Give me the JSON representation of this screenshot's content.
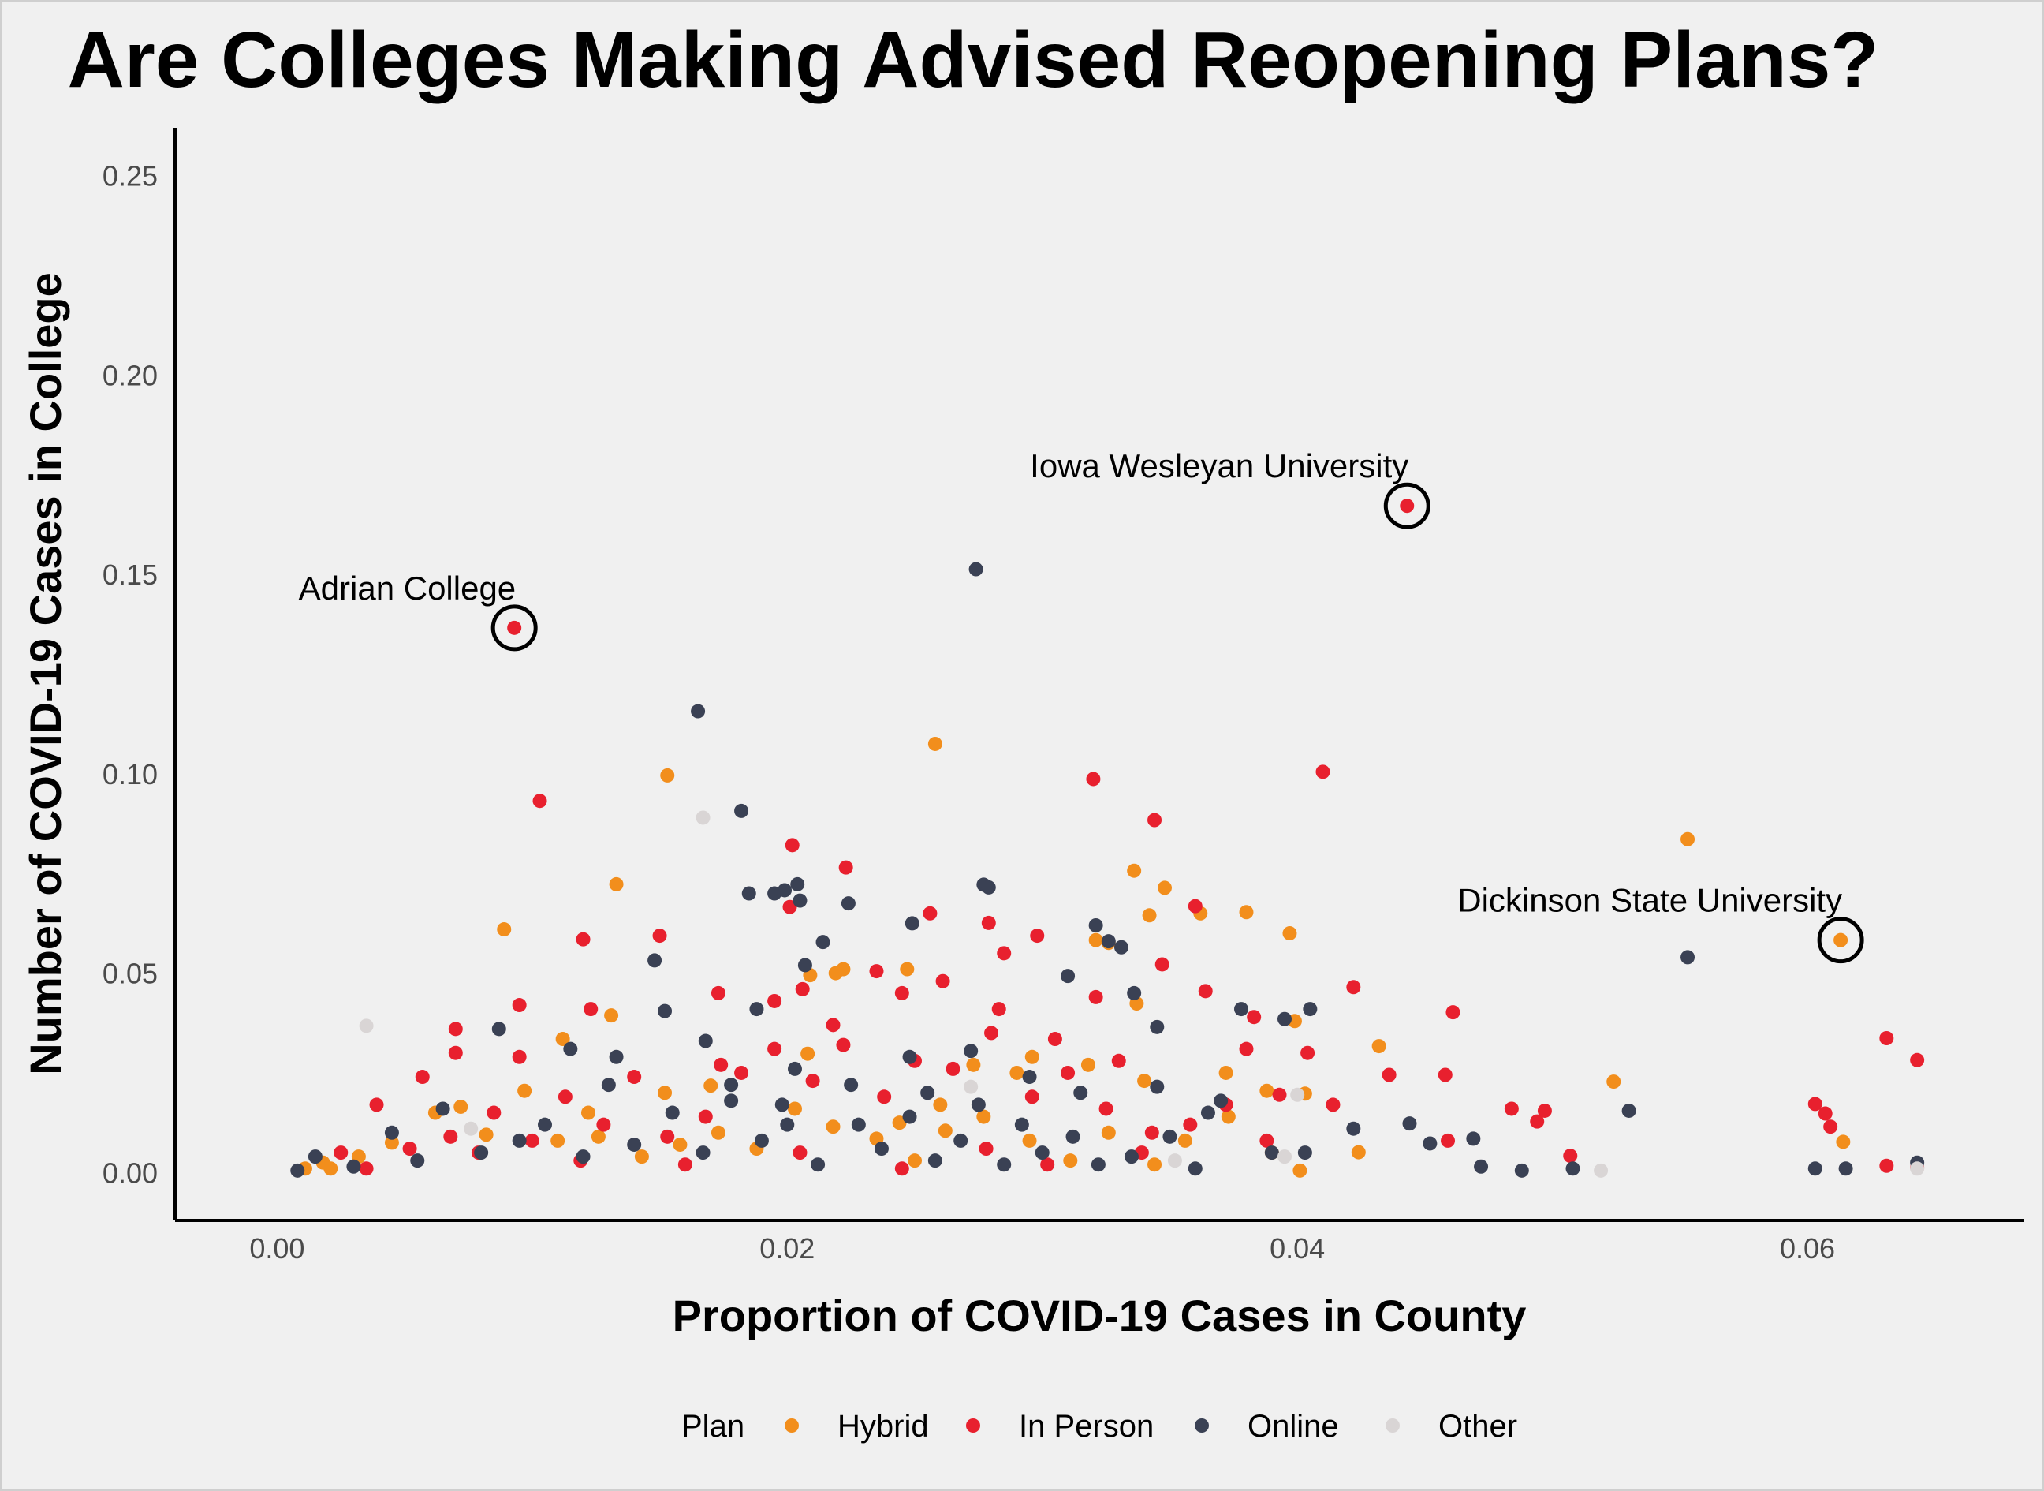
{
  "chart_data": {
    "type": "scatter",
    "title": "Are Colleges Making Advised Reopening Plans?",
    "xlabel": "Proportion of COVID-19 Cases in County",
    "ylabel": "Number of COVID-19 Cases in College",
    "xlim": [
      -0.004,
      0.0685
    ],
    "ylim": [
      -0.012,
      0.262
    ],
    "x_ticks": [
      0.0,
      0.02,
      0.04,
      0.06
    ],
    "x_tick_labels": [
      "0.00",
      "0.02",
      "0.04",
      "0.06"
    ],
    "y_ticks": [
      0.0,
      0.05,
      0.1,
      0.15,
      0.2,
      0.25
    ],
    "y_tick_labels": [
      "0.00",
      "0.05",
      "0.10",
      "0.15",
      "0.20",
      "0.25"
    ],
    "grid": false,
    "legend": {
      "title": "Plan",
      "placement": "bottom",
      "entries": [
        "Hybrid",
        "In Person",
        "Online",
        "Other"
      ]
    },
    "colors": {
      "Hybrid": "#f28e1c",
      "In Person": "#e8202e",
      "Online": "#3a4154",
      "Other": "#d9d5d5"
    },
    "series": [
      {
        "name": "Hybrid",
        "points": [
          [
            0.0153,
            0.0996
          ],
          [
            0.0258,
            0.1075
          ],
          [
            0.0133,
            0.0723
          ],
          [
            0.0089,
            0.061
          ],
          [
            0.0336,
            0.0757
          ],
          [
            0.0348,
            0.0714
          ],
          [
            0.0362,
            0.065
          ],
          [
            0.0342,
            0.0645
          ],
          [
            0.038,
            0.0653
          ],
          [
            0.0397,
            0.06
          ],
          [
            0.0321,
            0.0583
          ],
          [
            0.0326,
            0.0576
          ],
          [
            0.0553,
            0.0836
          ],
          [
            0.0613,
            0.0583
          ],
          [
            0.0131,
            0.0394
          ],
          [
            0.0112,
            0.0335
          ],
          [
            0.0222,
            0.051
          ],
          [
            0.0247,
            0.051
          ],
          [
            0.0209,
            0.0495
          ],
          [
            0.0219,
            0.05
          ],
          [
            0.0337,
            0.0424
          ],
          [
            0.0399,
            0.038
          ],
          [
            0.0432,
            0.0317
          ],
          [
            0.0524,
            0.0228
          ],
          [
            0.0614,
            0.0077
          ],
          [
            0.0424,
            0.0051
          ],
          [
            0.0401,
            0.0005
          ],
          [
            0.0403,
            0.0198
          ],
          [
            0.0388,
            0.0205
          ],
          [
            0.0372,
            0.025
          ],
          [
            0.0208,
            0.0298
          ],
          [
            0.017,
            0.0218
          ],
          [
            0.0152,
            0.02
          ],
          [
            0.026,
            0.017
          ],
          [
            0.0244,
            0.0125
          ],
          [
            0.0122,
            0.015
          ],
          [
            0.0097,
            0.0205
          ],
          [
            0.0062,
            0.015
          ],
          [
            0.0072,
            0.0165
          ],
          [
            0.0032,
            0.004
          ],
          [
            0.0021,
            0.001
          ],
          [
            0.0011,
            0.001
          ],
          [
            0.0018,
            0.0025
          ],
          [
            0.0045,
            0.0075
          ],
          [
            0.0082,
            0.0095
          ],
          [
            0.011,
            0.008
          ],
          [
            0.0126,
            0.009
          ],
          [
            0.0143,
            0.004
          ],
          [
            0.0158,
            0.007
          ],
          [
            0.0173,
            0.01
          ],
          [
            0.0188,
            0.006
          ],
          [
            0.0203,
            0.016
          ],
          [
            0.0218,
            0.0115
          ],
          [
            0.0235,
            0.0085
          ],
          [
            0.025,
            0.003
          ],
          [
            0.0262,
            0.0105
          ],
          [
            0.0277,
            0.014
          ],
          [
            0.0295,
            0.008
          ],
          [
            0.0311,
            0.003
          ],
          [
            0.0326,
            0.01
          ],
          [
            0.0344,
            0.002
          ],
          [
            0.0356,
            0.008
          ],
          [
            0.0373,
            0.014
          ],
          [
            0.039,
            0.005
          ],
          [
            0.0296,
            0.029
          ],
          [
            0.0318,
            0.027
          ],
          [
            0.034,
            0.023
          ],
          [
            0.029,
            0.025
          ],
          [
            0.0273,
            0.027
          ]
        ]
      },
      {
        "name": "In Person",
        "points": [
          [
            0.0093,
            0.1366
          ],
          [
            0.0443,
            0.1672
          ],
          [
            0.0103,
            0.0932
          ],
          [
            0.032,
            0.0987
          ],
          [
            0.041,
            0.1005
          ],
          [
            0.0202,
            0.0821
          ],
          [
            0.0223,
            0.0765
          ],
          [
            0.0344,
            0.0884
          ],
          [
            0.0256,
            0.065
          ],
          [
            0.0201,
            0.0666
          ],
          [
            0.036,
            0.0668
          ],
          [
            0.0279,
            0.0626
          ],
          [
            0.0298,
            0.0594
          ],
          [
            0.0285,
            0.055
          ],
          [
            0.012,
            0.0585
          ],
          [
            0.015,
            0.0594
          ],
          [
            0.0173,
            0.045
          ],
          [
            0.0206,
            0.046
          ],
          [
            0.0235,
            0.0505
          ],
          [
            0.0261,
            0.048
          ],
          [
            0.0283,
            0.041
          ],
          [
            0.0321,
            0.044
          ],
          [
            0.0347,
            0.0522
          ],
          [
            0.0364,
            0.0455
          ],
          [
            0.0383,
            0.039
          ],
          [
            0.0422,
            0.0465
          ],
          [
            0.0461,
            0.0402
          ],
          [
            0.0631,
            0.0337
          ],
          [
            0.0643,
            0.0282
          ],
          [
            0.0603,
            0.0172
          ],
          [
            0.0607,
            0.0148
          ],
          [
            0.0609,
            0.0115
          ],
          [
            0.0631,
            0.0017
          ],
          [
            0.0643,
            0.0012
          ],
          [
            0.0484,
            0.016
          ],
          [
            0.0497,
            0.0155
          ],
          [
            0.0494,
            0.0128
          ],
          [
            0.0507,
            0.0042
          ],
          [
            0.0459,
            0.008
          ],
          [
            0.0458,
            0.0245
          ],
          [
            0.0436,
            0.0245
          ],
          [
            0.0414,
            0.017
          ],
          [
            0.0393,
            0.0195
          ],
          [
            0.038,
            0.031
          ],
          [
            0.007,
            0.036
          ],
          [
            0.007,
            0.03
          ],
          [
            0.0095,
            0.029
          ],
          [
            0.0095,
            0.042
          ],
          [
            0.0123,
            0.041
          ],
          [
            0.0057,
            0.024
          ],
          [
            0.0039,
            0.017
          ],
          [
            0.0025,
            0.005
          ],
          [
            0.0035,
            0.001
          ],
          [
            0.0052,
            0.006
          ],
          [
            0.0068,
            0.009
          ],
          [
            0.0085,
            0.015
          ],
          [
            0.01,
            0.008
          ],
          [
            0.0113,
            0.019
          ],
          [
            0.0128,
            0.012
          ],
          [
            0.014,
            0.024
          ],
          [
            0.0153,
            0.009
          ],
          [
            0.0168,
            0.014
          ],
          [
            0.0182,
            0.025
          ],
          [
            0.0195,
            0.031
          ],
          [
            0.021,
            0.023
          ],
          [
            0.0222,
            0.032
          ],
          [
            0.0238,
            0.019
          ],
          [
            0.025,
            0.028
          ],
          [
            0.0265,
            0.026
          ],
          [
            0.028,
            0.035
          ],
          [
            0.0296,
            0.019
          ],
          [
            0.031,
            0.025
          ],
          [
            0.0325,
            0.016
          ],
          [
            0.0343,
            0.01
          ],
          [
            0.0358,
            0.012
          ],
          [
            0.0372,
            0.017
          ],
          [
            0.0388,
            0.008
          ],
          [
            0.0404,
            0.03
          ],
          [
            0.0218,
            0.037
          ],
          [
            0.0245,
            0.045
          ],
          [
            0.0195,
            0.043
          ],
          [
            0.0174,
            0.027
          ],
          [
            0.0305,
            0.0335
          ],
          [
            0.033,
            0.028
          ],
          [
            0.0079,
            0.005
          ],
          [
            0.0119,
            0.003
          ],
          [
            0.016,
            0.002
          ],
          [
            0.0205,
            0.005
          ],
          [
            0.0245,
            0.001
          ],
          [
            0.0278,
            0.006
          ],
          [
            0.0302,
            0.002
          ],
          [
            0.0339,
            0.005
          ]
        ]
      },
      {
        "name": "Online",
        "points": [
          [
            0.0274,
            0.1513
          ],
          [
            0.0165,
            0.1157
          ],
          [
            0.0182,
            0.0907
          ],
          [
            0.0204,
            0.0723
          ],
          [
            0.0277,
            0.0722
          ],
          [
            0.0279,
            0.0715
          ],
          [
            0.0185,
            0.07
          ],
          [
            0.0195,
            0.07
          ],
          [
            0.0199,
            0.0708
          ],
          [
            0.0205,
            0.0682
          ],
          [
            0.0224,
            0.0675
          ],
          [
            0.0249,
            0.0625
          ],
          [
            0.0321,
            0.062
          ],
          [
            0.0326,
            0.058
          ],
          [
            0.0331,
            0.0565
          ],
          [
            0.031,
            0.0493
          ],
          [
            0.0214,
            0.0578
          ],
          [
            0.0207,
            0.052
          ],
          [
            0.0148,
            0.0532
          ],
          [
            0.0152,
            0.0405
          ],
          [
            0.0188,
            0.041
          ],
          [
            0.0336,
            0.045
          ],
          [
            0.0345,
            0.0365
          ],
          [
            0.0378,
            0.041
          ],
          [
            0.0395,
            0.0385
          ],
          [
            0.0405,
            0.041
          ],
          [
            0.0553,
            0.054
          ],
          [
            0.053,
            0.0155
          ],
          [
            0.0444,
            0.0123
          ],
          [
            0.0452,
            0.0073
          ],
          [
            0.0469,
            0.0085
          ],
          [
            0.0472,
            0.0015
          ],
          [
            0.0488,
            0.0005
          ],
          [
            0.0508,
            0.001
          ],
          [
            0.0603,
            0.001
          ],
          [
            0.0615,
            0.001
          ],
          [
            0.0643,
            0.0025
          ],
          [
            0.0422,
            0.011
          ],
          [
            0.0403,
            0.005
          ],
          [
            0.039,
            0.005
          ],
          [
            0.036,
            0.001
          ],
          [
            0.0087,
            0.036
          ],
          [
            0.0115,
            0.031
          ],
          [
            0.0133,
            0.029
          ],
          [
            0.0168,
            0.033
          ],
          [
            0.0203,
            0.026
          ],
          [
            0.0248,
            0.029
          ],
          [
            0.0272,
            0.0305
          ],
          [
            0.0295,
            0.024
          ],
          [
            0.0315,
            0.02
          ],
          [
            0.0345,
            0.0215
          ],
          [
            0.037,
            0.018
          ],
          [
            0.0008,
            0.0005
          ],
          [
            0.0015,
            0.004
          ],
          [
            0.003,
            0.0015
          ],
          [
            0.0045,
            0.01
          ],
          [
            0.0055,
            0.003
          ],
          [
            0.0065,
            0.016
          ],
          [
            0.008,
            0.005
          ],
          [
            0.0095,
            0.008
          ],
          [
            0.0105,
            0.012
          ],
          [
            0.012,
            0.004
          ],
          [
            0.013,
            0.022
          ],
          [
            0.014,
            0.007
          ],
          [
            0.0155,
            0.015
          ],
          [
            0.0167,
            0.005
          ],
          [
            0.0178,
            0.018
          ],
          [
            0.019,
            0.008
          ],
          [
            0.02,
            0.012
          ],
          [
            0.0212,
            0.002
          ],
          [
            0.0225,
            0.022
          ],
          [
            0.0237,
            0.006
          ],
          [
            0.0248,
            0.014
          ],
          [
            0.0258,
            0.003
          ],
          [
            0.0268,
            0.008
          ],
          [
            0.0275,
            0.017
          ],
          [
            0.0285,
            0.002
          ],
          [
            0.0292,
            0.012
          ],
          [
            0.03,
            0.005
          ],
          [
            0.0312,
            0.009
          ],
          [
            0.0322,
            0.002
          ],
          [
            0.0335,
            0.004
          ],
          [
            0.035,
            0.009
          ],
          [
            0.0365,
            0.015
          ],
          [
            0.0255,
            0.02
          ],
          [
            0.0178,
            0.022
          ],
          [
            0.0198,
            0.017
          ],
          [
            0.0228,
            0.012
          ]
        ]
      },
      {
        "name": "Other",
        "points": [
          [
            0.0167,
            0.089
          ],
          [
            0.0035,
            0.0368
          ],
          [
            0.0076,
            0.011
          ],
          [
            0.0272,
            0.0215
          ],
          [
            0.04,
            0.0195
          ],
          [
            0.0395,
            0.004
          ],
          [
            0.0352,
            0.003
          ],
          [
            0.0519,
            0.0005
          ],
          [
            0.0643,
            0.001
          ]
        ]
      }
    ],
    "annotations": [
      {
        "label": "Adrian College",
        "x": 0.0093,
        "y": 0.1366,
        "label_anchor": "end",
        "circled": true
      },
      {
        "label": "Iowa Wesleyan University",
        "x": 0.0443,
        "y": 0.1672,
        "label_anchor": "end",
        "circled": true
      },
      {
        "label": "Dickinson State University",
        "x": 0.0613,
        "y": 0.0583,
        "label_anchor": "end",
        "circled": true
      }
    ]
  }
}
